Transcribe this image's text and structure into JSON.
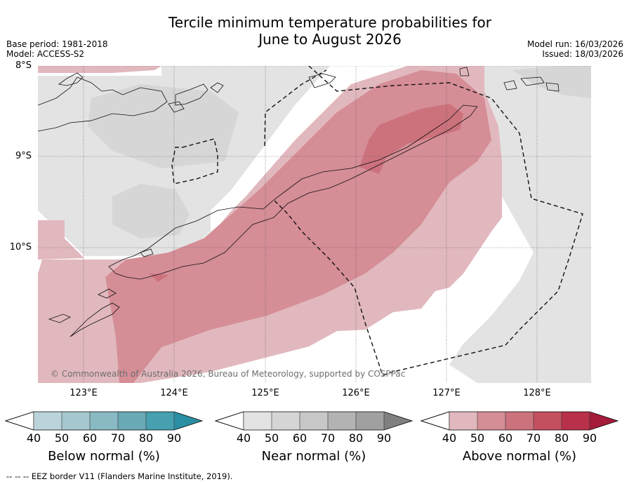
{
  "title_line1": "Tercile minimum temperature probabilities for",
  "title_line2": "June to August 2026",
  "base_period": "Base period: 1981-2018",
  "model": "Model: ACCESS-S2",
  "model_run": "Model run: 16/03/2026",
  "issued": "Issued: 18/03/2026",
  "lat_labels": [
    "8°S",
    "9°S",
    "10°S"
  ],
  "lon_labels": [
    "123°E",
    "124°E",
    "125°E",
    "126°E",
    "127°E",
    "128°E"
  ],
  "copyright": "© Commonwealth of Australia 2026, Bureau of Meteorology, supported by COSPPac",
  "legend": {
    "below": {
      "label": "Below normal (%)",
      "ticks": [
        "40",
        "50",
        "60",
        "70",
        "80",
        "90"
      ],
      "colors": [
        "#bbd3db",
        "#a5c8cf",
        "#89b9c3",
        "#6aa9b6",
        "#46a0b0",
        "#2b8fa3"
      ]
    },
    "near": {
      "label": "Near normal (%)",
      "ticks": [
        "40",
        "50",
        "60",
        "70",
        "80",
        "90"
      ],
      "colors": [
        "#e3e3e3",
        "#d5d5d5",
        "#c7c7c7",
        "#b3b3b3",
        "#a0a0a0",
        "#7f7f7f"
      ]
    },
    "above": {
      "label": "Above normal (%)",
      "ticks": [
        "40",
        "50",
        "60",
        "70",
        "80",
        "90"
      ],
      "colors": [
        "#e1b8be",
        "#d58d96",
        "#cc727d",
        "#c4505f",
        "#b8304a",
        "#a41c3a"
      ]
    }
  },
  "footer": "--  --  -- EEZ border V11 (Flanders Marine Institute, 2019)."
}
